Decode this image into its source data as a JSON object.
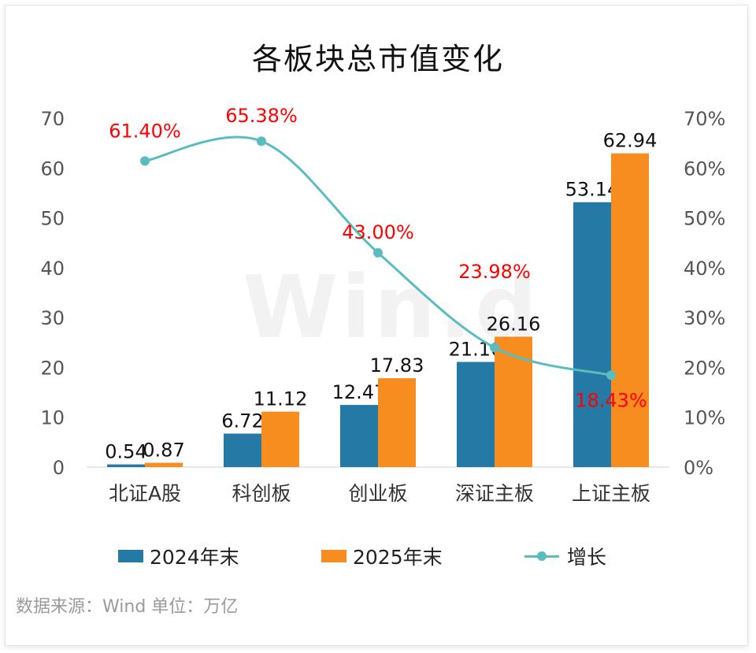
{
  "chart_data": {
    "type": "bar",
    "title": "各板块总市值变化",
    "categories": [
      "北证A股",
      "科创板",
      "创业板",
      "深证主板",
      "上证主板"
    ],
    "series": [
      {
        "name": "2024年末",
        "type": "bar",
        "color": "#2479a5",
        "values": [
          0.54,
          6.72,
          12.47,
          21.1,
          53.14
        ],
        "labels": [
          "0.54",
          "6.72",
          "12.47",
          "21.10",
          "53.14"
        ]
      },
      {
        "name": "2025年末",
        "type": "bar",
        "color": "#f78c1f",
        "values": [
          0.87,
          11.12,
          17.83,
          26.16,
          62.94
        ],
        "labels": [
          "0.87",
          "11.12",
          "17.83",
          "26.16",
          "62.94"
        ]
      },
      {
        "name": "增长",
        "type": "line",
        "axis": "right",
        "color": "#5bbcc0",
        "values": [
          61.4,
          65.38,
          43.0,
          23.98,
          18.43
        ],
        "labels": [
          "61.40%",
          "65.38%",
          "43.00%",
          "23.98%",
          "18.43%"
        ],
        "label_color": "#ff0000"
      }
    ],
    "y_left": {
      "min": 0,
      "max": 70,
      "ticks": [
        "0",
        "10",
        "20",
        "30",
        "40",
        "50",
        "60",
        "70"
      ]
    },
    "y_right": {
      "min": 0,
      "max": 70,
      "ticks": [
        "0%",
        "10%",
        "20%",
        "30%",
        "40%",
        "50%",
        "60%",
        "70%"
      ]
    },
    "grid": false,
    "legend_position": "bottom"
  },
  "legend": {
    "bar1": "2024年末",
    "bar2": "2025年末",
    "line": "增长"
  },
  "watermark": "Win.d",
  "footer": {
    "source": "数据来源：Wind    单位：万亿"
  }
}
